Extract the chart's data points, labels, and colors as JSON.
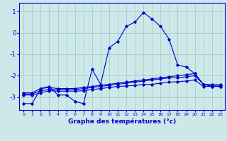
{
  "xlabel": "Graphe des températures (°c)",
  "background_color": "#cde8e8",
  "grid_color": "#aacccc",
  "line_color": "#0000cc",
  "x_ticks": [
    0,
    1,
    2,
    3,
    4,
    5,
    6,
    7,
    8,
    9,
    10,
    11,
    12,
    13,
    14,
    15,
    16,
    17,
    18,
    19,
    20,
    21,
    22,
    23
  ],
  "ylim": [
    -3.6,
    1.4
  ],
  "yticks": [
    1,
    0,
    -1,
    -2,
    -3
  ],
  "series": [
    {
      "x": [
        0,
        1,
        2,
        3,
        4,
        5,
        6,
        7,
        8,
        9,
        10,
        11,
        12,
        13,
        14,
        15,
        16,
        17,
        18,
        19,
        20,
        21,
        22,
        23
      ],
      "y": [
        -3.3,
        -3.3,
        -2.6,
        -2.5,
        -2.9,
        -2.9,
        -3.2,
        -3.3,
        -1.7,
        -2.4,
        -0.7,
        -0.4,
        0.3,
        0.5,
        0.95,
        0.65,
        0.3,
        -0.3,
        -1.5,
        -1.6,
        -1.9,
        -2.4,
        -2.5,
        -2.5
      ]
    },
    {
      "x": [
        0,
        1,
        2,
        3,
        4,
        5,
        6,
        7,
        8,
        9,
        10,
        11,
        12,
        13,
        14,
        15,
        16,
        17,
        18,
        19,
        20,
        21,
        22,
        23
      ],
      "y": [
        -2.8,
        -2.8,
        -2.6,
        -2.55,
        -2.6,
        -2.6,
        -2.6,
        -2.55,
        -2.5,
        -2.45,
        -2.4,
        -2.35,
        -2.3,
        -2.25,
        -2.2,
        -2.15,
        -2.1,
        -2.05,
        -2.0,
        -1.95,
        -1.9,
        -2.4,
        -2.45,
        -2.45
      ]
    },
    {
      "x": [
        0,
        1,
        2,
        3,
        4,
        5,
        6,
        7,
        8,
        9,
        10,
        11,
        12,
        13,
        14,
        15,
        16,
        17,
        18,
        19,
        20,
        21,
        22,
        23
      ],
      "y": [
        -2.85,
        -2.85,
        -2.7,
        -2.65,
        -2.65,
        -2.65,
        -2.65,
        -2.6,
        -2.55,
        -2.5,
        -2.45,
        -2.4,
        -2.35,
        -2.3,
        -2.25,
        -2.2,
        -2.15,
        -2.1,
        -2.1,
        -2.05,
        -2.0,
        -2.4,
        -2.42,
        -2.42
      ]
    },
    {
      "x": [
        0,
        1,
        2,
        3,
        4,
        5,
        6,
        7,
        8,
        9,
        10,
        11,
        12,
        13,
        14,
        15,
        16,
        17,
        18,
        19,
        20,
        21,
        22,
        23
      ],
      "y": [
        -2.9,
        -2.9,
        -2.8,
        -2.7,
        -2.72,
        -2.72,
        -2.72,
        -2.7,
        -2.65,
        -2.6,
        -2.55,
        -2.5,
        -2.48,
        -2.45,
        -2.42,
        -2.4,
        -2.35,
        -2.3,
        -2.28,
        -2.25,
        -2.2,
        -2.5,
        -2.5,
        -2.5
      ]
    }
  ]
}
